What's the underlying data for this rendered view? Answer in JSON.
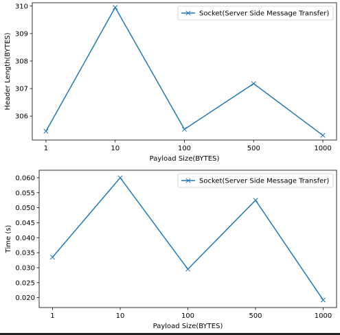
{
  "chart_data": [
    {
      "type": "line",
      "categories": [
        "1",
        "10",
        "100",
        "500",
        "1000"
      ],
      "series": [
        {
          "name": "Socket(Server Side Message Transfer)",
          "values": [
            305.45,
            309.95,
            305.52,
            307.18,
            305.3
          ],
          "marker": "x",
          "color": "#1f77b4"
        }
      ],
      "xlabel": "Payload Size(BYTES)",
      "ylabel": "Header Length(BYTES)",
      "ylim": [
        305.13,
        310.12
      ],
      "yticks": [
        306,
        307,
        308,
        309,
        310
      ],
      "ytick_labels": [
        "306",
        "307",
        "308",
        "309",
        "310"
      ],
      "legend": "top-right",
      "grid": false
    },
    {
      "type": "line",
      "categories": [
        "1",
        "10",
        "100",
        "500",
        "1000"
      ],
      "series": [
        {
          "name": "Socket(Server Side Message Transfer)",
          "values": [
            0.0335,
            0.06,
            0.0295,
            0.0525,
            0.0192
          ],
          "marker": "x",
          "color": "#1f77b4"
        }
      ],
      "xlabel": "Payload Size(BYTES)",
      "ylabel": "Time (s)",
      "ylim": [
        0.0167,
        0.0625
      ],
      "yticks": [
        0.02,
        0.025,
        0.03,
        0.035,
        0.04,
        0.045,
        0.05,
        0.055,
        0.06
      ],
      "ytick_labels": [
        "0.020",
        "0.025",
        "0.030",
        "0.035",
        "0.040",
        "0.045",
        "0.050",
        "0.055",
        "0.060"
      ],
      "legend": "top-right",
      "grid": false
    }
  ]
}
